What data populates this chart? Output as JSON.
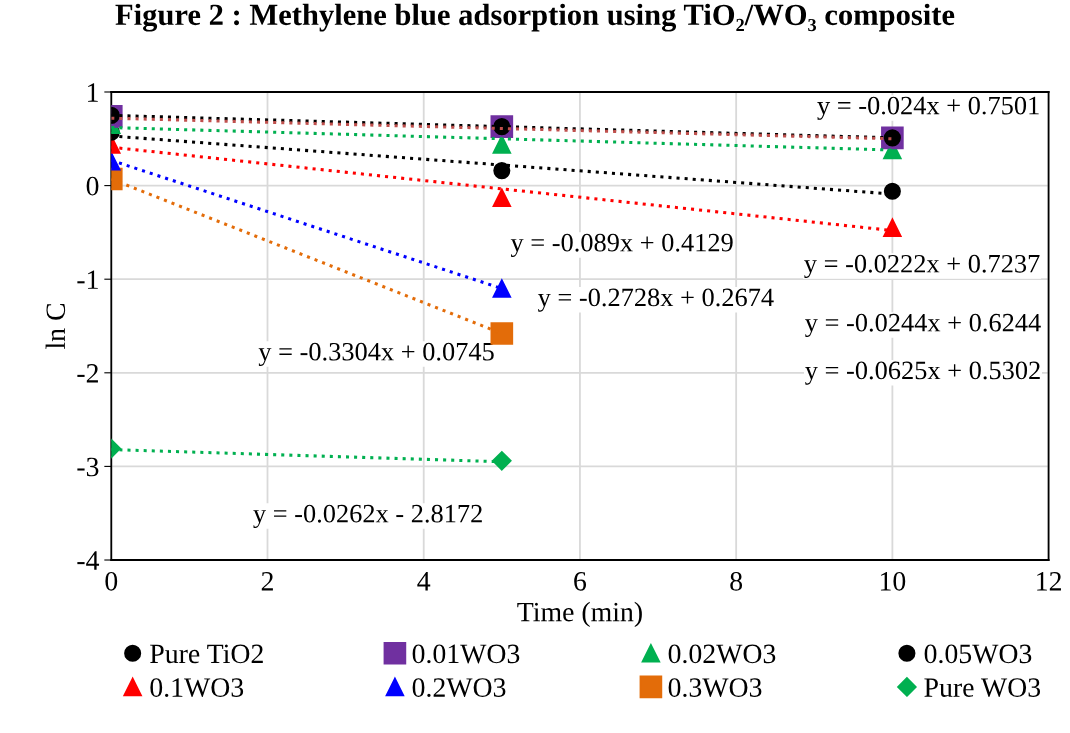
{
  "chart_data": {
    "type": "scatter",
    "title": "Figure 2 : Methylene blue adsorption using TiO₂/WO₃ composite",
    "xlabel": "Time (min)",
    "ylabel": "ln C",
    "xlim": [
      0,
      12
    ],
    "ylim": [
      -4,
      1
    ],
    "xticks": [
      0,
      2,
      4,
      6,
      8,
      10,
      12
    ],
    "yticks": [
      -4,
      -3,
      -2,
      -1,
      0,
      1
    ],
    "grid": true,
    "legend": "bottom",
    "series": [
      {
        "name": "Pure TiO2",
        "color": "#000000",
        "marker": "circle",
        "x": [
          0,
          5,
          10
        ],
        "values": [
          0.75,
          0.63,
          0.51
        ]
      },
      {
        "name": "0.01WO3",
        "color": "#7030a0",
        "marker": "square",
        "x": [
          0,
          5,
          10
        ],
        "values": [
          0.74,
          0.63,
          0.51
        ]
      },
      {
        "name": "0.02WO3",
        "color": "#00b050",
        "marker": "triangle",
        "x": [
          0,
          5,
          10
        ],
        "values": [
          0.65,
          0.44,
          0.38
        ]
      },
      {
        "name": "0.05WO3",
        "color": "#000000",
        "marker": "circle",
        "x": [
          0,
          5,
          10
        ],
        "values": [
          0.57,
          0.16,
          -0.06
        ]
      },
      {
        "name": "0.1WO3",
        "color": "#ff0000",
        "marker": "triangle",
        "x": [
          0,
          5,
          10
        ],
        "values": [
          0.44,
          -0.13,
          -0.45
        ]
      },
      {
        "name": "0.2WO3",
        "color": "#0000ff",
        "marker": "triangle",
        "x": [
          0,
          5
        ],
        "values": [
          0.26,
          -1.1
        ]
      },
      {
        "name": "0.3WO3",
        "color": "#e36c09",
        "marker": "square",
        "x": [
          0,
          5
        ],
        "values": [
          0.07,
          -1.58
        ]
      },
      {
        "name": "Pure WO3",
        "color": "#00b050",
        "marker": "diamond",
        "x": [
          0,
          5
        ],
        "values": [
          -2.81,
          -2.94
        ]
      },
      {
        "type": "line",
        "line_style": "dotted",
        "marker": "none",
        "color": "#000000",
        "x": [
          0,
          10
        ],
        "values": [
          0.75,
          0.51
        ]
      },
      {
        "type": "line",
        "line_style": "dotted",
        "marker": "none",
        "color": "#c0504d",
        "x": [
          0,
          10
        ],
        "values": [
          0.72,
          0.5
        ]
      },
      {
        "type": "line",
        "line_style": "dotted",
        "marker": "none",
        "color": "#00b050",
        "x": [
          0,
          10
        ],
        "values": [
          0.62,
          0.38
        ]
      },
      {
        "type": "line",
        "line_style": "dotted",
        "marker": "none",
        "color": "#000000",
        "x": [
          0,
          10
        ],
        "values": [
          0.53,
          -0.09
        ]
      },
      {
        "type": "line",
        "line_style": "dotted",
        "marker": "none",
        "color": "#ff0000",
        "x": [
          0,
          10
        ],
        "values": [
          0.41,
          -0.48
        ]
      },
      {
        "type": "line",
        "line_style": "dotted",
        "marker": "none",
        "color": "#0000ff",
        "x": [
          0,
          5
        ],
        "values": [
          0.27,
          -1.1
        ]
      },
      {
        "type": "line",
        "line_style": "dotted",
        "marker": "none",
        "color": "#e36c09",
        "x": [
          0,
          5
        ],
        "values": [
          0.07,
          -1.58
        ]
      },
      {
        "type": "line",
        "line_style": "dotted",
        "marker": "none",
        "color": "#00b050",
        "x": [
          0,
          5
        ],
        "values": [
          -2.82,
          -2.95
        ]
      }
    ],
    "annotations": [
      "y = -0.024x + 0.7501",
      "y = -0.089x + 0.4129",
      "y = -0.0222x + 0.7237",
      "y = -0.2728x + 0.2674",
      "y = -0.0244x + 0.6244",
      "y = -0.3304x + 0.0745",
      "y = -0.0625x + 0.5302",
      "y = -0.0262x - 2.8172"
    ]
  }
}
